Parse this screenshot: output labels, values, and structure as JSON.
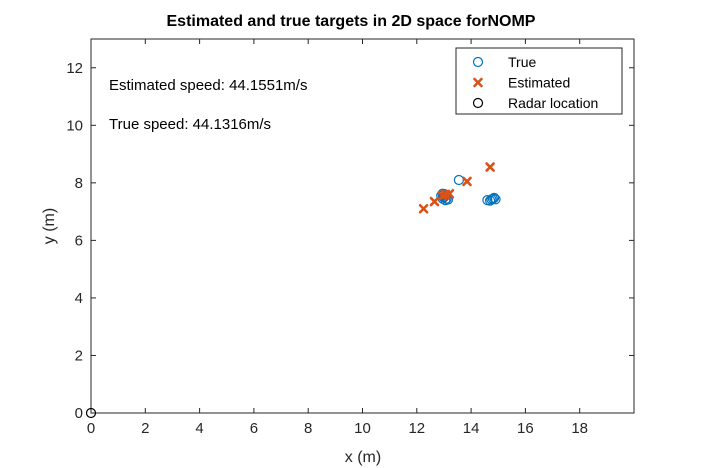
{
  "chart_data": {
    "type": "scatter",
    "title": "Estimated and true targets in 2D space forNOMP",
    "xlabel": "x (m)",
    "ylabel": "y (m)",
    "xlim": [
      0,
      20
    ],
    "ylim": [
      0,
      13
    ],
    "xticks": [
      0,
      2,
      4,
      6,
      8,
      10,
      12,
      14,
      16,
      18
    ],
    "yticks": [
      0,
      2,
      4,
      6,
      8,
      10,
      12
    ],
    "grid": false,
    "legend_position": "top-right",
    "annotations": [
      {
        "text": "Estimated speed: 44.1551m/s",
        "x": 0.6,
        "y": 11.3
      },
      {
        "text": "True speed: 44.1316m/s",
        "x": 0.6,
        "y": 10.0
      }
    ],
    "series": [
      {
        "name": "True",
        "marker": "circle",
        "color": "#0072BD",
        "points": [
          [
            12.95,
            7.45
          ],
          [
            13.0,
            7.5
          ],
          [
            13.05,
            7.55
          ],
          [
            13.0,
            7.6
          ],
          [
            12.95,
            7.62
          ],
          [
            13.1,
            7.45
          ],
          [
            13.15,
            7.42
          ],
          [
            12.9,
            7.55
          ],
          [
            13.05,
            7.4
          ],
          [
            13.1,
            7.58
          ],
          [
            13.55,
            8.1
          ],
          [
            14.6,
            7.4
          ],
          [
            14.7,
            7.38
          ],
          [
            14.75,
            7.42
          ],
          [
            14.8,
            7.45
          ],
          [
            14.85,
            7.48
          ],
          [
            14.9,
            7.43
          ]
        ]
      },
      {
        "name": "Estimated",
        "marker": "x",
        "color": "#D95319",
        "points": [
          [
            12.25,
            7.1
          ],
          [
            12.65,
            7.35
          ],
          [
            12.95,
            7.55
          ],
          [
            13.05,
            7.6
          ],
          [
            13.2,
            7.62
          ],
          [
            13.85,
            8.05
          ],
          [
            14.7,
            8.55
          ]
        ]
      },
      {
        "name": "Radar location",
        "marker": "circle",
        "color": "#000000",
        "points": [
          [
            0,
            0
          ]
        ]
      }
    ]
  }
}
